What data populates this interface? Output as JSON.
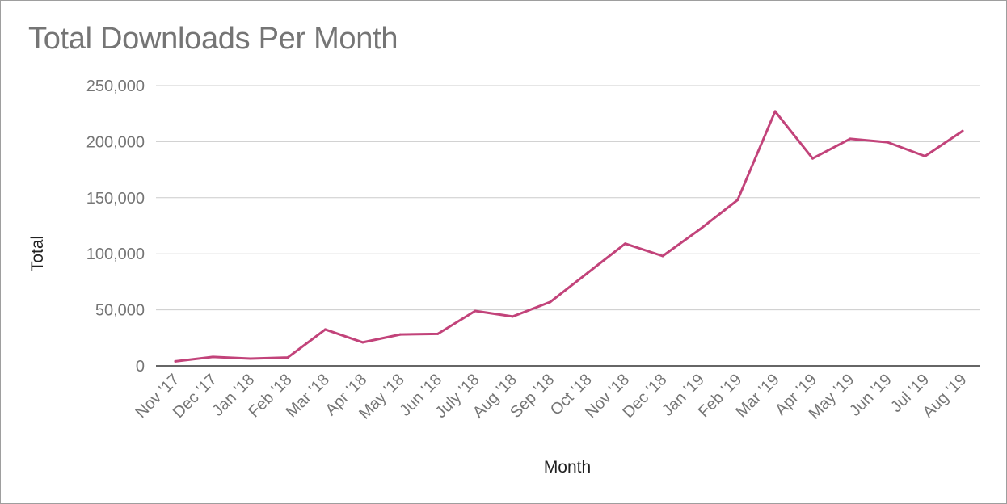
{
  "chart_data": {
    "type": "line",
    "title": "Total Downloads Per Month",
    "xlabel": "Month",
    "ylabel": "Total",
    "categories": [
      "Nov '17",
      "Dec '17",
      "Jan '18",
      "Feb '18",
      "Mar '18",
      "Apr '18",
      "May '18",
      "Jun '18",
      "July '18",
      "Aug '18",
      "Sep '18",
      "Oct '18",
      "Nov '18",
      "Dec '18",
      "Jan '19",
      "Feb '19",
      "Mar '19",
      "Apr '19",
      "May '19",
      "Jun '19",
      "Jul '19",
      "Aug '19"
    ],
    "series": [
      {
        "values": [
          4000,
          8000,
          6500,
          7500,
          32500,
          21000,
          28000,
          28500,
          49000,
          44000,
          57000,
          83000,
          109000,
          98000,
          122000,
          148000,
          227000,
          185000,
          202500,
          199500,
          187000,
          209500
        ]
      }
    ],
    "ylim": [
      0,
      250000
    ],
    "yticks": [
      0,
      50000,
      100000,
      150000,
      200000,
      250000
    ],
    "ytick_labels": [
      "0",
      "50,000",
      "100,000",
      "150,000",
      "200,000",
      "250,000"
    ],
    "grid": true,
    "line_color": "#c2437a",
    "gridline_color": "#cccccc",
    "axis_color": "#333333"
  }
}
